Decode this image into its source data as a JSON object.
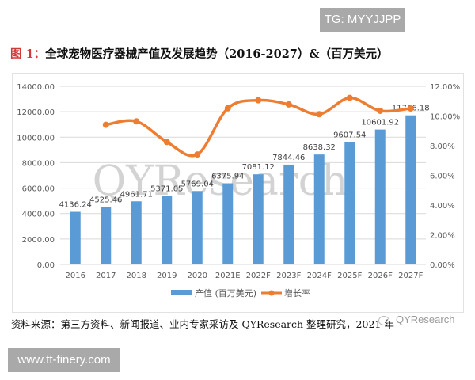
{
  "watermarks": {
    "tg_badge": "TG: MYYJJPP",
    "url_badge": "www.tt-finery.com",
    "chart_watermark": "QYResearch",
    "source_logo": "QYResearch"
  },
  "figure": {
    "prefix": "图 1：",
    "title": "全球宠物医疗器械产值及发展趋势（2016-2027）&（百万美元）",
    "source": "资料来源：第三方资料、新闻报道、业内专家采访及 QYResearch 整理研究，2021 年"
  },
  "colors": {
    "bar": "#5b9bd5",
    "line": "#ed7d31",
    "grid": "#d9d9d9",
    "axis_text": "#595959"
  },
  "chart_data": {
    "type": "bar",
    "title": "全球宠物医疗器械产值及发展趋势（2016-2027）&（百万美元）",
    "categories": [
      "2016",
      "2017",
      "2018",
      "2019",
      "2020",
      "2021E",
      "2022F",
      "2023F",
      "2024F",
      "2025F",
      "2026F",
      "2027F"
    ],
    "series": [
      {
        "name": "产值 (百万美元)",
        "type": "bar",
        "axis": "left",
        "values": [
          4136.24,
          4525.46,
          4961.71,
          5371.05,
          5769.04,
          6375.94,
          7081.12,
          7844.46,
          8638.32,
          9607.54,
          10601.92,
          11716.18
        ],
        "labels": [
          "4136.24",
          "4525.46",
          "4961.71",
          "5371.05",
          "5769.04",
          "6375.94",
          "7081.12",
          "7844.46",
          "8638.32",
          "9607.54",
          "10601.92",
          "11716.18"
        ]
      },
      {
        "name": "增长率",
        "type": "line",
        "axis": "right",
        "values": [
          null,
          9.41,
          9.64,
          8.25,
          7.41,
          10.52,
          11.06,
          10.78,
          10.12,
          11.22,
          10.35,
          10.51
        ]
      }
    ],
    "y_left": {
      "min": 0,
      "max": 14000,
      "ticks": [
        "0.00",
        "2000.00",
        "4000.00",
        "6000.00",
        "8000.00",
        "10000.00",
        "12000.00",
        "14000.00"
      ]
    },
    "y_right": {
      "min": 0,
      "max": 12,
      "ticks": [
        "0.00%",
        "2.00%",
        "4.00%",
        "6.00%",
        "8.00%",
        "10.00%",
        "12.00%"
      ]
    },
    "xlabel": "",
    "ylabel": "",
    "grid": true,
    "legend_position": "bottom",
    "legend": [
      {
        "label": "产值 (百万美元)",
        "kind": "bar"
      },
      {
        "label": "增长率",
        "kind": "line"
      }
    ]
  }
}
